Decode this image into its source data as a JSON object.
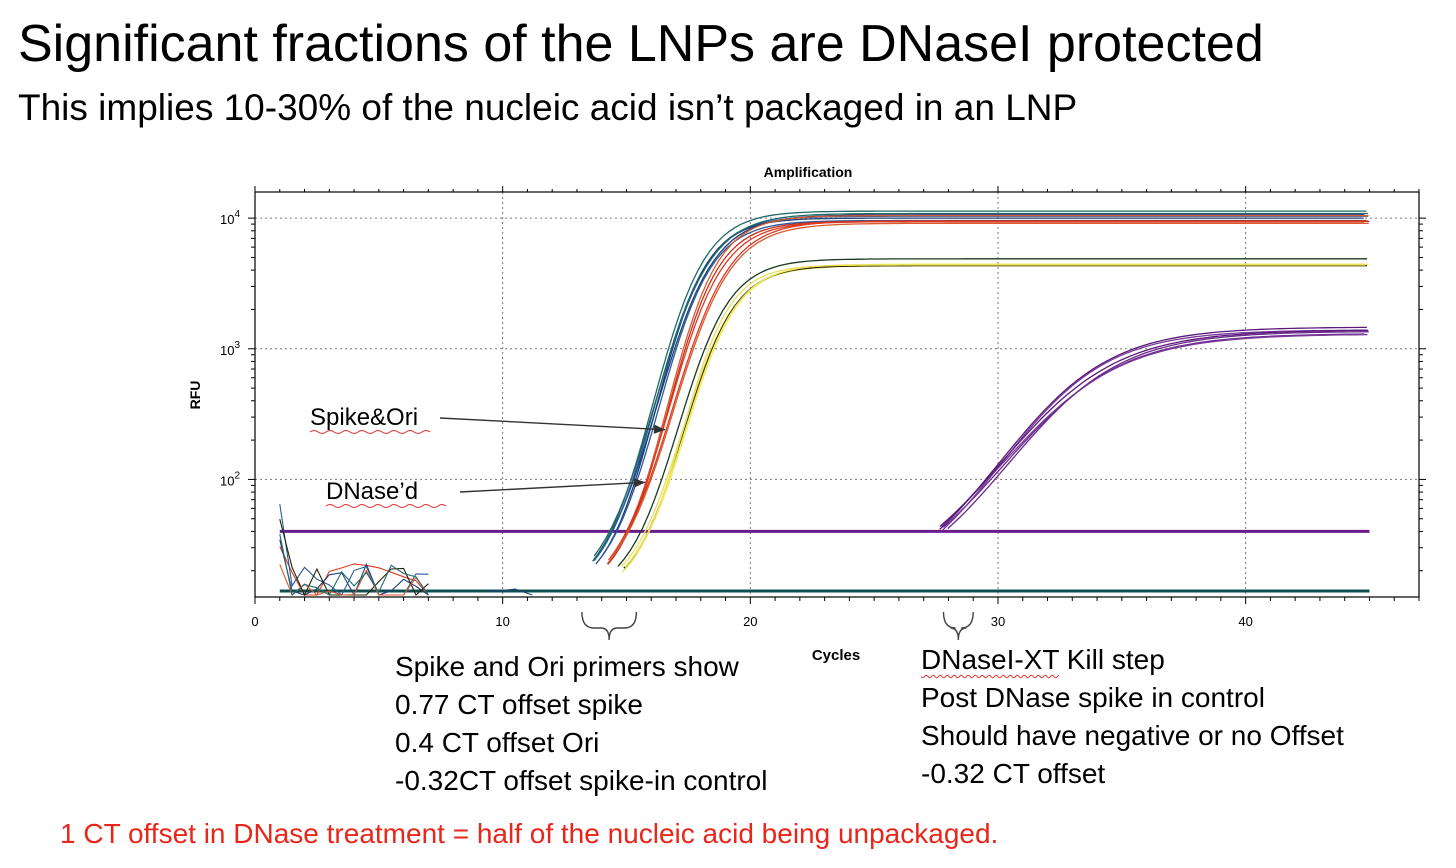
{
  "slide": {
    "title": "Significant fractions of the LNPs are DNaseI protected",
    "subtitle": "This implies 10-30% of the nucleic acid isn’t packaged in an LNP",
    "footer": "1 CT offset in DNase treatment = half of the nucleic acid being unpackaged.",
    "left_note": [
      "Spike and Ori primers show",
      "0.77 CT offset spike",
      "0.4   CT offset Ori",
      "-0.32CT offset spike-in control"
    ],
    "right_note": {
      "first_word": "DNaseI-XT",
      "first_rest": " Kill step",
      "lines": [
        "Post DNase spike in control",
        "Should have negative or no Offset",
        "-0.32 CT offset"
      ]
    }
  },
  "chart_data": {
    "type": "line",
    "title": "Amplification",
    "xlabel": "Cycles",
    "ylabel": "RFU",
    "xlim": [
      0,
      47
    ],
    "xticks": [
      0,
      10,
      20,
      30,
      40
    ],
    "ylim_log10": [
      1.1,
      4.2
    ],
    "y_scale": "log",
    "yticks": [
      {
        "value": 100,
        "base": "10",
        "exp": "2"
      },
      {
        "value": 1000,
        "base": "10",
        "exp": "3"
      },
      {
        "value": 10000,
        "base": "10",
        "exp": "4"
      }
    ],
    "grid": true,
    "annotations": [
      {
        "text": "Spike&Ori",
        "points_to": [
          16.8,
          240
        ]
      },
      {
        "text": "DNase’d",
        "points_to": [
          16,
          95
        ]
      }
    ],
    "thresholds": [
      {
        "value": 40,
        "color": "#6a1b8c"
      },
      {
        "value": 14,
        "color": "#0f4f4f"
      }
    ],
    "series_groups": [
      {
        "colors": [
          "#1f3f7a",
          "#2a5a9a",
          "#1e6a6a"
        ],
        "count": 6,
        "ct": 15.4,
        "plateau_log": 4.02,
        "k": 0.42,
        "spread": 0.4
      },
      {
        "colors": [
          "#e03a20",
          "#d85a30",
          "#c43020"
        ],
        "count": 5,
        "ct": 16.0,
        "plateau_log": 3.98,
        "k": 0.41,
        "spread": 0.4
      },
      {
        "colors": [
          "#f2ea60",
          "#e8e060",
          "#222200",
          "#1a3a20"
        ],
        "count": 6,
        "ct": 16.4,
        "plateau_log": 3.65,
        "k": 0.45,
        "spread": 0.35
      },
      {
        "colors": [
          "#6a2a8a",
          "#7a3a9a",
          "#5a1a7a"
        ],
        "count": 6,
        "ct": 29.3,
        "plateau_log": 3.15,
        "k": 0.2,
        "spread": 0.6
      }
    ],
    "ct_offsets": [
      {
        "label": "spike",
        "value": 0.77
      },
      {
        "label": "Ori",
        "value": 0.4
      },
      {
        "label": "spike-in control",
        "value": -0.32
      },
      {
        "label": "Post DNase spike in control",
        "value": -0.32
      }
    ],
    "brace_labels": [
      {
        "x_from": 13.2,
        "x_to": 15.4
      },
      {
        "x_from": 27.8,
        "x_to": 29.0
      }
    ]
  }
}
